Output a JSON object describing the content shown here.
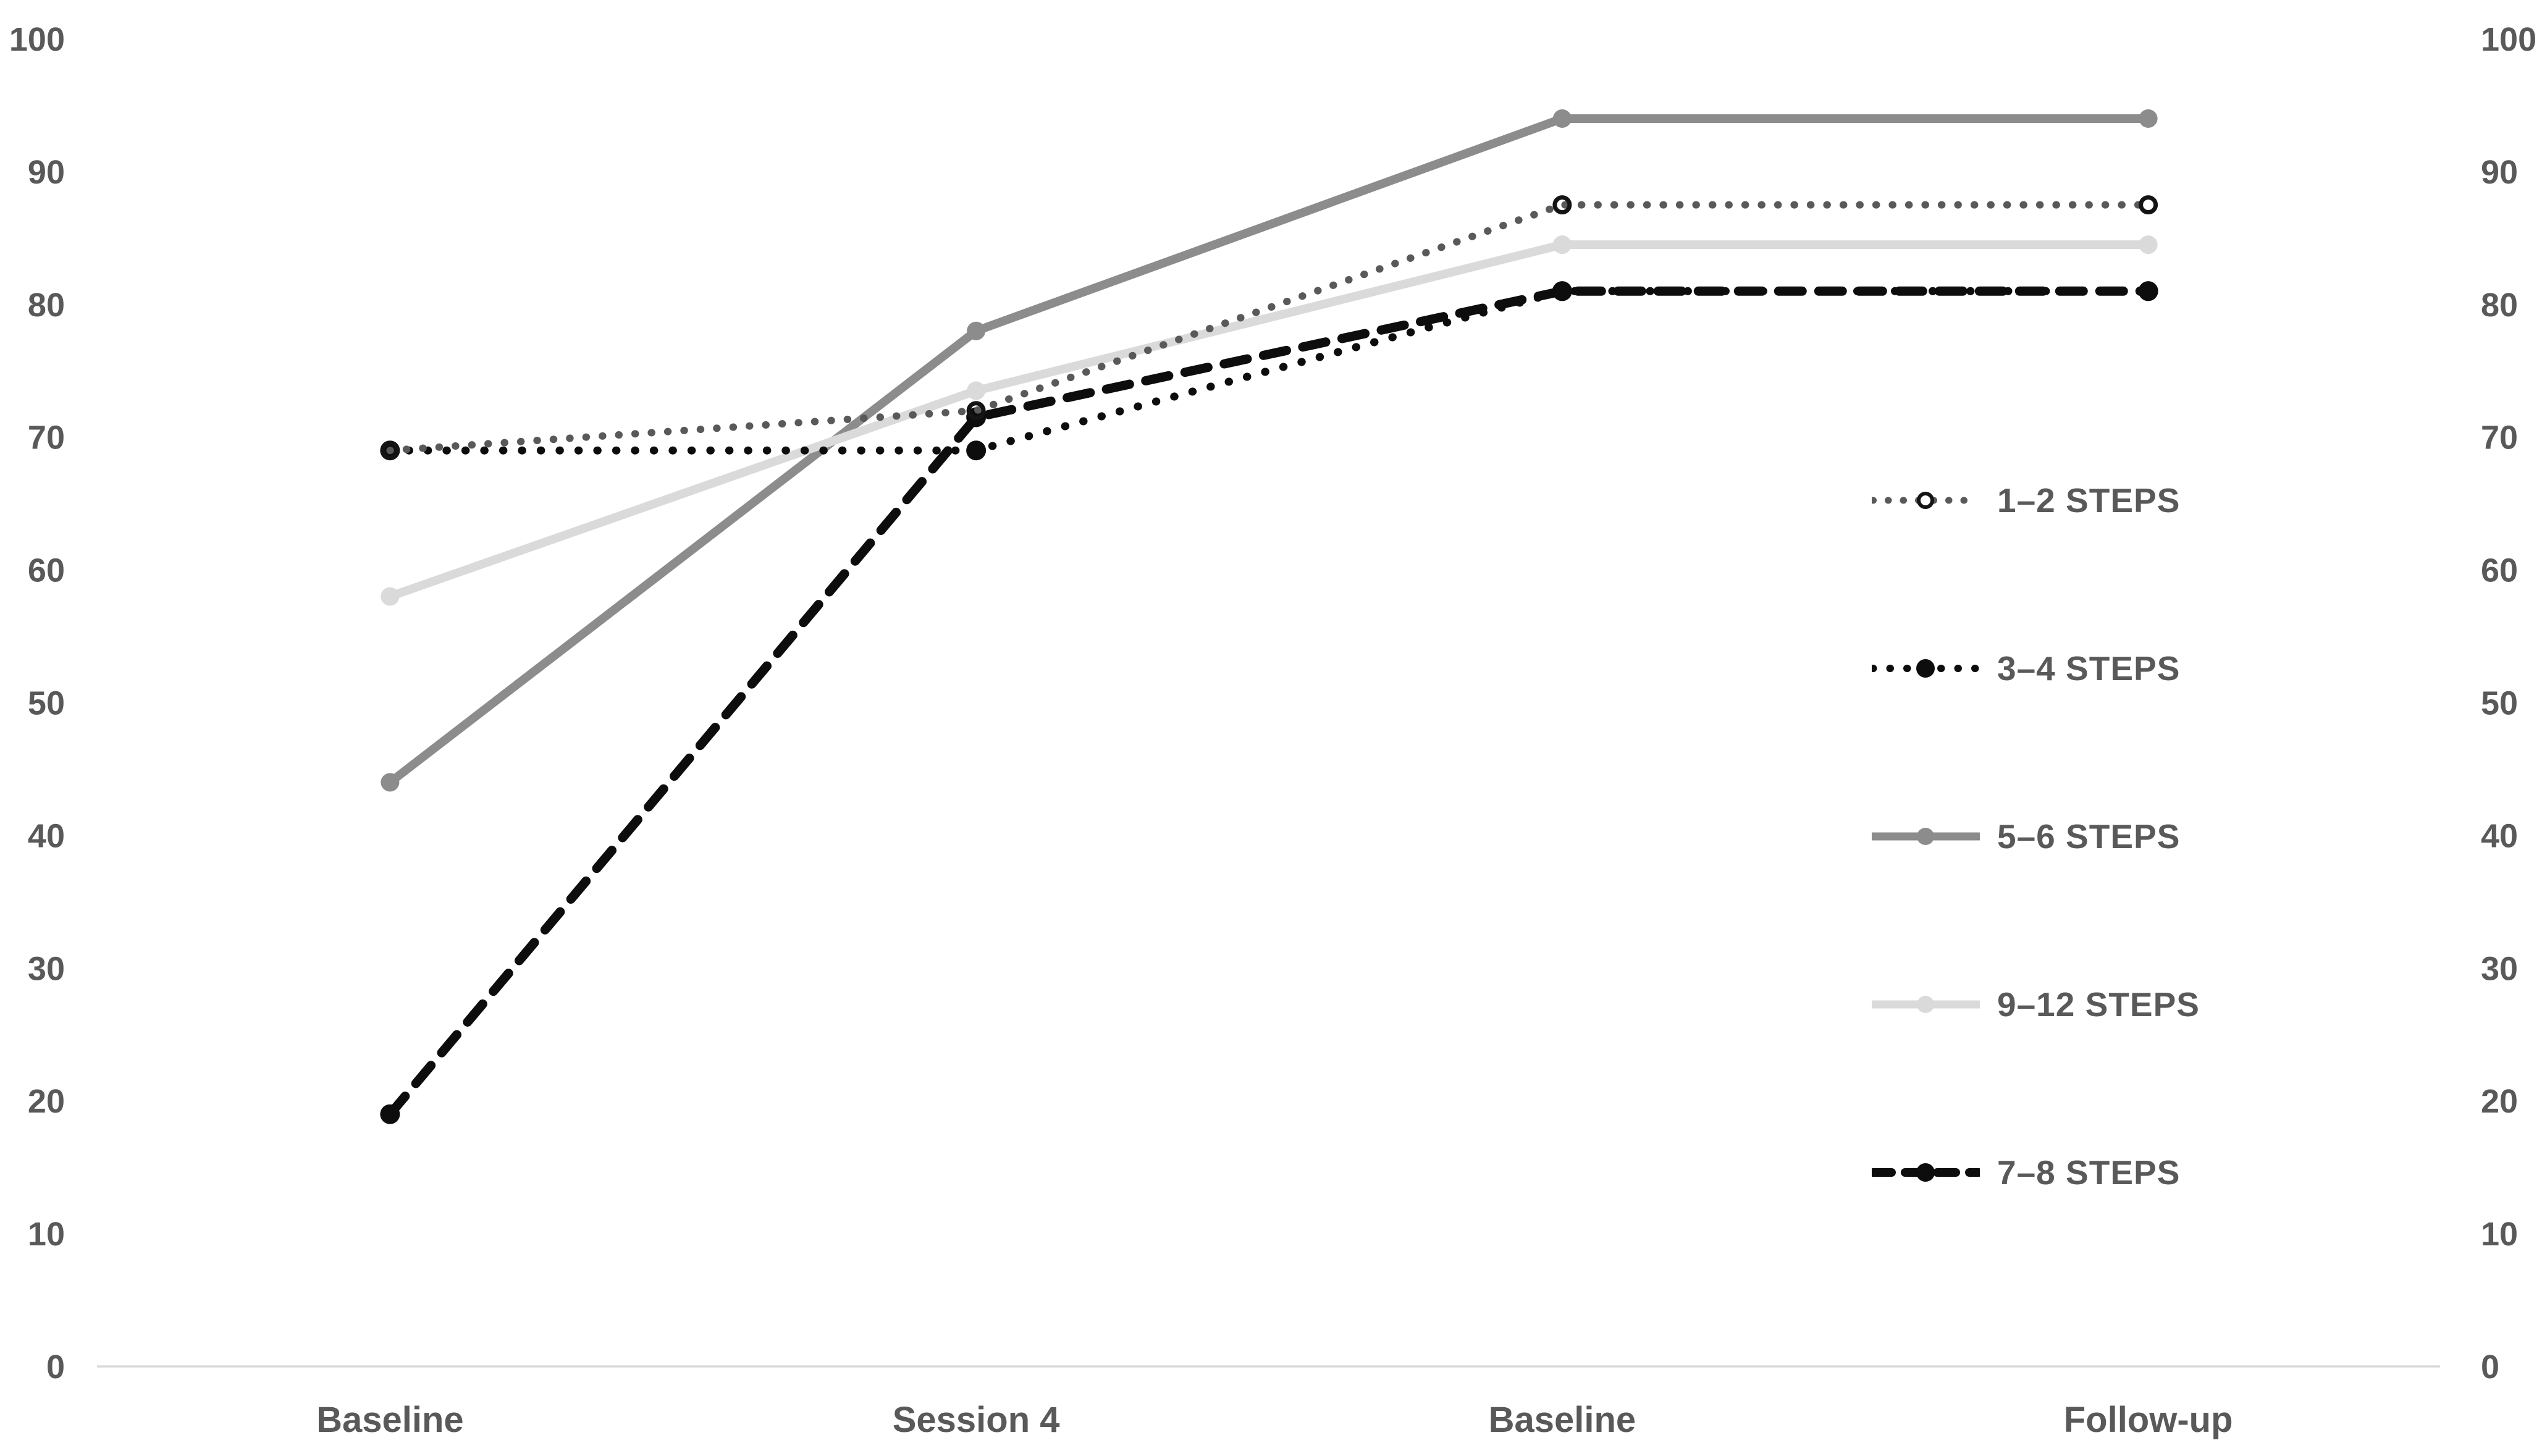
{
  "chart_data": {
    "type": "line",
    "title": "",
    "xlabel": "",
    "ylabel": "",
    "categories": [
      "Baseline",
      "Session 4",
      "Baseline",
      "Follow-up"
    ],
    "series": [
      {
        "name": "1–2 STEPS",
        "values": [
          69,
          72,
          87.5,
          87.5
        ],
        "color": "#595959",
        "marker_color": "#141414",
        "line_style": "dotted",
        "marker": "open-circle"
      },
      {
        "name": "3–4 STEPS",
        "values": [
          69,
          69,
          81,
          81
        ],
        "color": "#0d0d0d",
        "marker_color": "#0d0d0d",
        "line_style": "dotted",
        "marker": "filled-circle"
      },
      {
        "name": "5–6 STEPS",
        "values": [
          44,
          78,
          94,
          94
        ],
        "color": "#8c8c8c",
        "marker_color": "#8c8c8c",
        "line_style": "solid",
        "marker": "filled-circle"
      },
      {
        "name": "9–12 STEPS",
        "values": [
          58,
          73.5,
          84.5,
          84.5
        ],
        "color": "#dadada",
        "marker_color": "#dadada",
        "line_style": "solid",
        "marker": "filled-circle"
      },
      {
        "name": "7–8 STEPS",
        "values": [
          19,
          71.5,
          81,
          81
        ],
        "color": "#0d0d0d",
        "marker_color": "#0d0d0d",
        "line_style": "dashed",
        "marker": "filled-circle"
      }
    ],
    "y_ticks": [
      100,
      90,
      80,
      70,
      60,
      50,
      40,
      30,
      20,
      10,
      0
    ],
    "ylim": [
      0,
      100
    ],
    "y_axis_sides": "both",
    "gridlines": "zero-line-only",
    "legend_position": "right-middle"
  },
  "colors": {
    "background": "#ffffff",
    "axis_label": "#595959",
    "zero_axis_line": "#dadada"
  }
}
